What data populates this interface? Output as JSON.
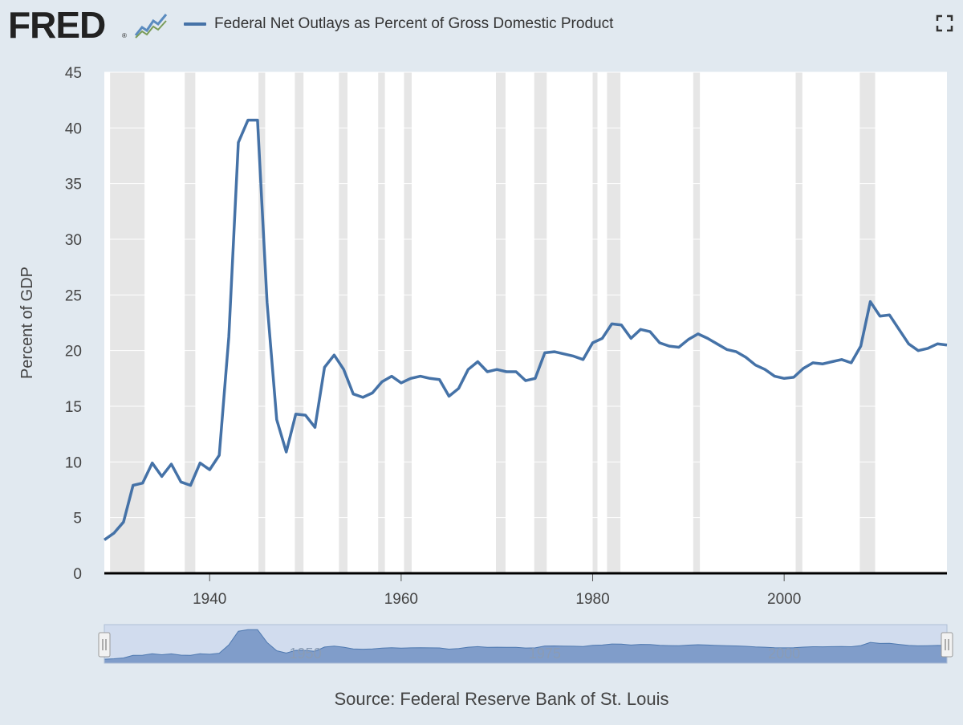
{
  "header": {
    "logo_text": "FRED",
    "logo_reg": "®",
    "graph_icon": "line-chart-icon",
    "fullscreen_icon": "fullscreen-icon",
    "series_color": "#4572a7"
  },
  "chart_data": {
    "type": "line",
    "title": "",
    "series": [
      {
        "name": "Federal Net Outlays as Percent of Gross Domestic Product",
        "color": "#4572a7",
        "x": [
          1929,
          1930,
          1931,
          1932,
          1933,
          1934,
          1935,
          1936,
          1937,
          1938,
          1939,
          1940,
          1941,
          1942,
          1943,
          1944,
          1945,
          1946,
          1947,
          1948,
          1949,
          1950,
          1951,
          1952,
          1953,
          1954,
          1955,
          1956,
          1957,
          1958,
          1959,
          1960,
          1961,
          1962,
          1963,
          1964,
          1965,
          1966,
          1967,
          1968,
          1969,
          1970,
          1971,
          1972,
          1973,
          1974,
          1975,
          1976,
          1977,
          1978,
          1979,
          1980,
          1981,
          1982,
          1983,
          1984,
          1985,
          1986,
          1987,
          1988,
          1989,
          1990,
          1991,
          1992,
          1993,
          1994,
          1995,
          1996,
          1997,
          1998,
          1999,
          2000,
          2001,
          2002,
          2003,
          2004,
          2005,
          2006,
          2007,
          2008,
          2009,
          2010,
          2011,
          2012,
          2013,
          2014,
          2015,
          2016,
          2017
        ],
        "values": [
          3.0,
          3.6,
          4.6,
          7.9,
          8.1,
          9.9,
          8.7,
          9.8,
          8.2,
          7.9,
          9.9,
          9.3,
          10.6,
          21.2,
          38.7,
          40.7,
          40.7,
          24.3,
          13.8,
          10.9,
          14.3,
          14.2,
          13.1,
          18.5,
          19.6,
          18.3,
          16.1,
          15.8,
          16.2,
          17.2,
          17.7,
          17.1,
          17.5,
          17.7,
          17.5,
          17.4,
          15.9,
          16.6,
          18.3,
          19.0,
          18.1,
          18.3,
          18.1,
          18.1,
          17.3,
          17.5,
          19.8,
          19.9,
          19.7,
          19.5,
          19.2,
          20.7,
          21.1,
          22.4,
          22.3,
          21.1,
          21.9,
          21.7,
          20.7,
          20.4,
          20.3,
          21.0,
          21.5,
          21.1,
          20.6,
          20.1,
          19.9,
          19.4,
          18.7,
          18.3,
          17.7,
          17.5,
          17.6,
          18.4,
          18.9,
          18.8,
          19.0,
          19.2,
          18.9,
          20.4,
          24.4,
          23.1,
          23.2,
          21.9,
          20.6,
          20.0,
          20.2,
          20.6,
          20.5
        ]
      }
    ],
    "ylabel": "Percent of GDP",
    "ylim": [
      0,
      45
    ],
    "yticks": [
      "0",
      "5",
      "10",
      "15",
      "20",
      "25",
      "30",
      "35",
      "40",
      "45"
    ],
    "xlim": [
      1929,
      2017
    ],
    "xticks": [
      "1940",
      "1960",
      "1980",
      "2000"
    ],
    "navigator_ticks": [
      "1950",
      "1975",
      "2000"
    ],
    "recessions": [
      [
        1929.6,
        1933.2
      ],
      [
        1937.4,
        1938.5
      ],
      [
        1945.1,
        1945.8
      ],
      [
        1948.9,
        1949.8
      ],
      [
        1953.5,
        1954.4
      ],
      [
        1957.6,
        1958.3
      ],
      [
        1960.3,
        1961.1
      ],
      [
        1969.9,
        1970.9
      ],
      [
        1973.9,
        1975.2
      ],
      [
        1980.0,
        1980.5
      ],
      [
        1981.5,
        1982.9
      ],
      [
        1990.5,
        1991.2
      ],
      [
        2001.2,
        2001.9
      ],
      [
        2007.9,
        2009.5
      ]
    ],
    "grid": true,
    "legend_position": "top-left"
  },
  "source": "Source: Federal Reserve Bank of St. Louis"
}
